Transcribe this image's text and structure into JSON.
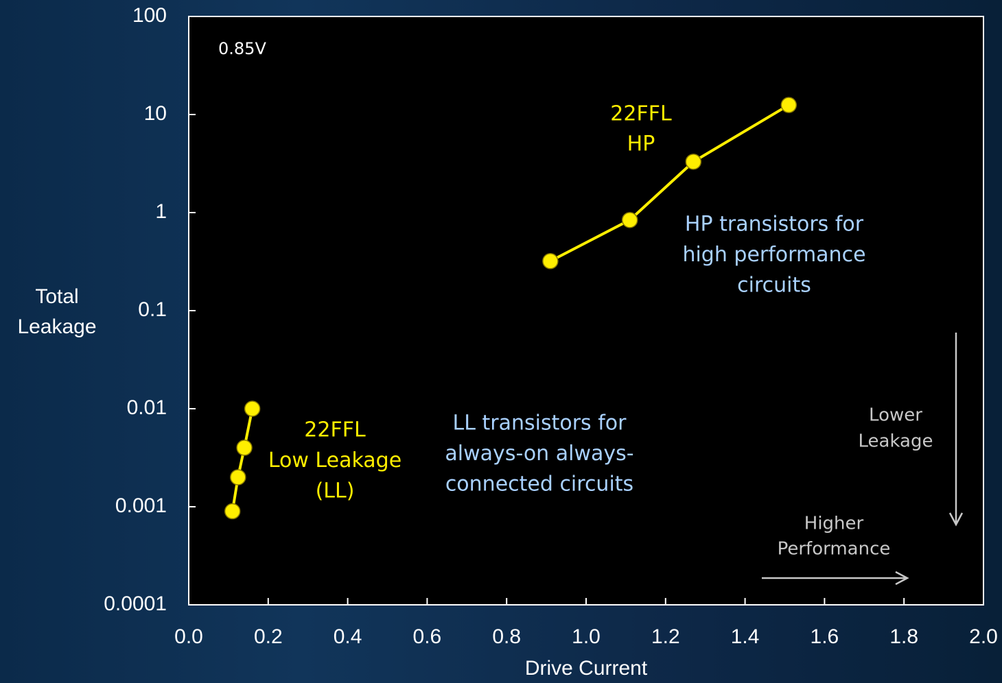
{
  "chart_data": {
    "type": "line",
    "xlabel": "Drive Current",
    "ylabel": [
      "Total",
      "Leakage"
    ],
    "xlim": [
      0,
      2
    ],
    "xticks": [
      {
        "value": 0,
        "label": "0.0"
      },
      0.2,
      0.4,
      0.6,
      0.8,
      {
        "value": 1,
        "label": "1.0"
      },
      1.2,
      1.4,
      1.6,
      1.8,
      {
        "value": 2,
        "label": "2.0"
      }
    ],
    "ylim": [
      0.0001,
      100
    ],
    "yticks": [
      0.0001,
      0.001,
      0.01,
      0.1,
      1,
      10,
      100
    ],
    "yscale": "log",
    "series": [
      {
        "color": "#ffee00",
        "x": [
          0.11,
          0.124,
          0.14,
          0.16
        ],
        "values": [
          0.0009,
          0.002,
          0.004,
          0.01
        ]
      },
      {
        "color": "#ffee00",
        "x": [
          0.91,
          1.11,
          1.27,
          1.51
        ],
        "values": [
          0.32,
          0.84,
          3.3,
          12.5
        ]
      }
    ],
    "annotations": [
      {
        "text": [
          "0.85V"
        ],
        "color": "#ffffff"
      },
      {
        "text": [
          "22FFL",
          "HP"
        ],
        "color": "#ffee00"
      },
      {
        "text": [
          "HP transistors for",
          "high performance",
          "circuits"
        ],
        "color": "#a9d1ff"
      },
      {
        "text": [
          "22FFL",
          "Low Leakage",
          "(LL)"
        ],
        "color": "#ffee00"
      },
      {
        "text": [
          "LL transistors for",
          "always-on always-",
          "connected circuits"
        ],
        "color": "#a9d1ff"
      },
      {
        "text": [
          "Lower",
          "Leakage"
        ],
        "color": "#c8c8c8"
      },
      {
        "text": [
          "Higher",
          "Performance"
        ],
        "color": "#c8c8c8"
      }
    ]
  }
}
